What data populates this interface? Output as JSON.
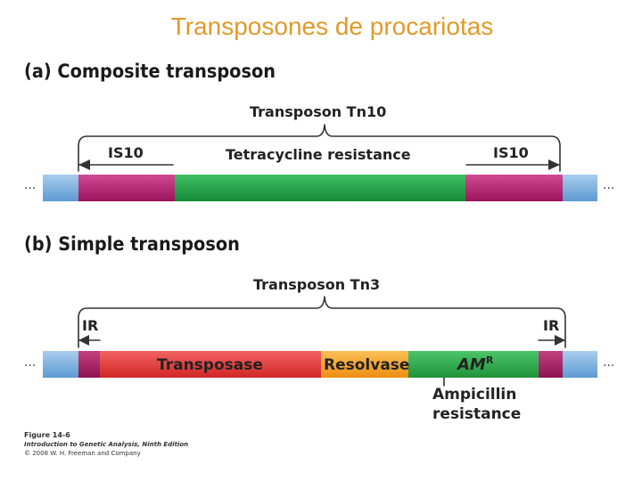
{
  "slide": {
    "title": "Transposones de procariotas"
  },
  "colors": {
    "dna_blue": "#6aa6d8",
    "is_magenta": "#b01e6e",
    "tet_green": "#1fa344",
    "ir_magenta": "#a31a64",
    "transposase_red": "#e53a3a",
    "resolvase_orange": "#f5a22a",
    "amp_green": "#2da84a",
    "title_orange": "#e09a2a"
  },
  "panel_a": {
    "heading": "(a) Composite transposon",
    "transposon_label": "Transposon Tn10",
    "left_is_label": "IS10",
    "middle_label": "Tetracycline resistance",
    "right_is_label": "IS10",
    "ellipsis": "..."
  },
  "panel_b": {
    "heading": "(b) Simple transposon",
    "transposon_label": "Transposon Tn3",
    "left_ir_label": "IR",
    "right_ir_label": "IR",
    "transposase_label": "Transposase",
    "resolvase_label": "Resolvase",
    "amr_label": "AM",
    "amr_superscript": "R",
    "ampicillin_line1": "Ampicillin",
    "ampicillin_line2": "resistance",
    "ellipsis": "..."
  },
  "caption": {
    "line1": "Figure 14-6",
    "line2": "Introduction to Genetic Analysis, Ninth Edition",
    "line3": "© 2008 W. H. Freeman and Company"
  }
}
